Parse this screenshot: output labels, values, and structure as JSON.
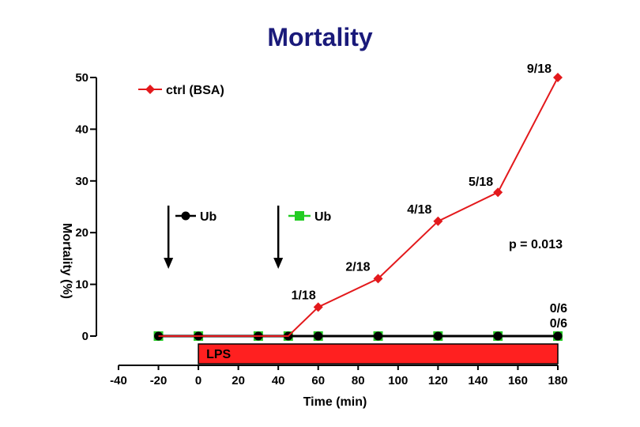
{
  "chart_data": {
    "type": "line",
    "title": "Mortality",
    "xlabel": "Time (min)",
    "ylabel": "Mortality (%)",
    "xlim": [
      -40,
      180
    ],
    "ylim": [
      0,
      50
    ],
    "x_ticks": [
      -40,
      -20,
      0,
      20,
      40,
      60,
      80,
      100,
      120,
      140,
      160,
      180
    ],
    "y_ticks": [
      0,
      10,
      20,
      30,
      40,
      50
    ],
    "series": [
      {
        "name": "ctrl (BSA)",
        "color": "#e3191c",
        "marker": "diamond",
        "x": [
          -20,
          0,
          30,
          45,
          60,
          90,
          120,
          150,
          180
        ],
        "y": [
          0,
          0,
          0,
          0,
          5.6,
          11.1,
          22.2,
          27.8,
          50
        ],
        "point_labels": [
          "",
          "",
          "",
          "",
          "1/18",
          "2/18",
          "4/18",
          "5/18",
          "9/18"
        ]
      },
      {
        "name": "Ub",
        "color": "#000000",
        "marker": "circle",
        "x": [
          -20,
          0,
          30,
          45,
          60,
          90,
          120,
          150,
          180
        ],
        "y": [
          0,
          0,
          0,
          0,
          0,
          0,
          0,
          0,
          0
        ],
        "end_label": "0/6"
      },
      {
        "name": "Ub",
        "color": "#22cc22",
        "marker": "square",
        "x": [
          -20,
          0,
          30,
          45,
          60,
          90,
          120,
          150,
          180
        ],
        "y": [
          0,
          0,
          0,
          0,
          0,
          0,
          0,
          0,
          0
        ],
        "end_label": "0/6"
      }
    ],
    "annotations": {
      "p_value": "p = 0.013",
      "lps_bar": {
        "label": "LPS",
        "x_start": 0,
        "x_end": 180,
        "color": "#ff2020"
      },
      "arrows_x": [
        -15,
        40
      ]
    },
    "legend_entries": [
      {
        "label": "ctrl (BSA)"
      },
      {
        "label": "Ub"
      },
      {
        "label": "Ub"
      }
    ],
    "grid": false
  }
}
